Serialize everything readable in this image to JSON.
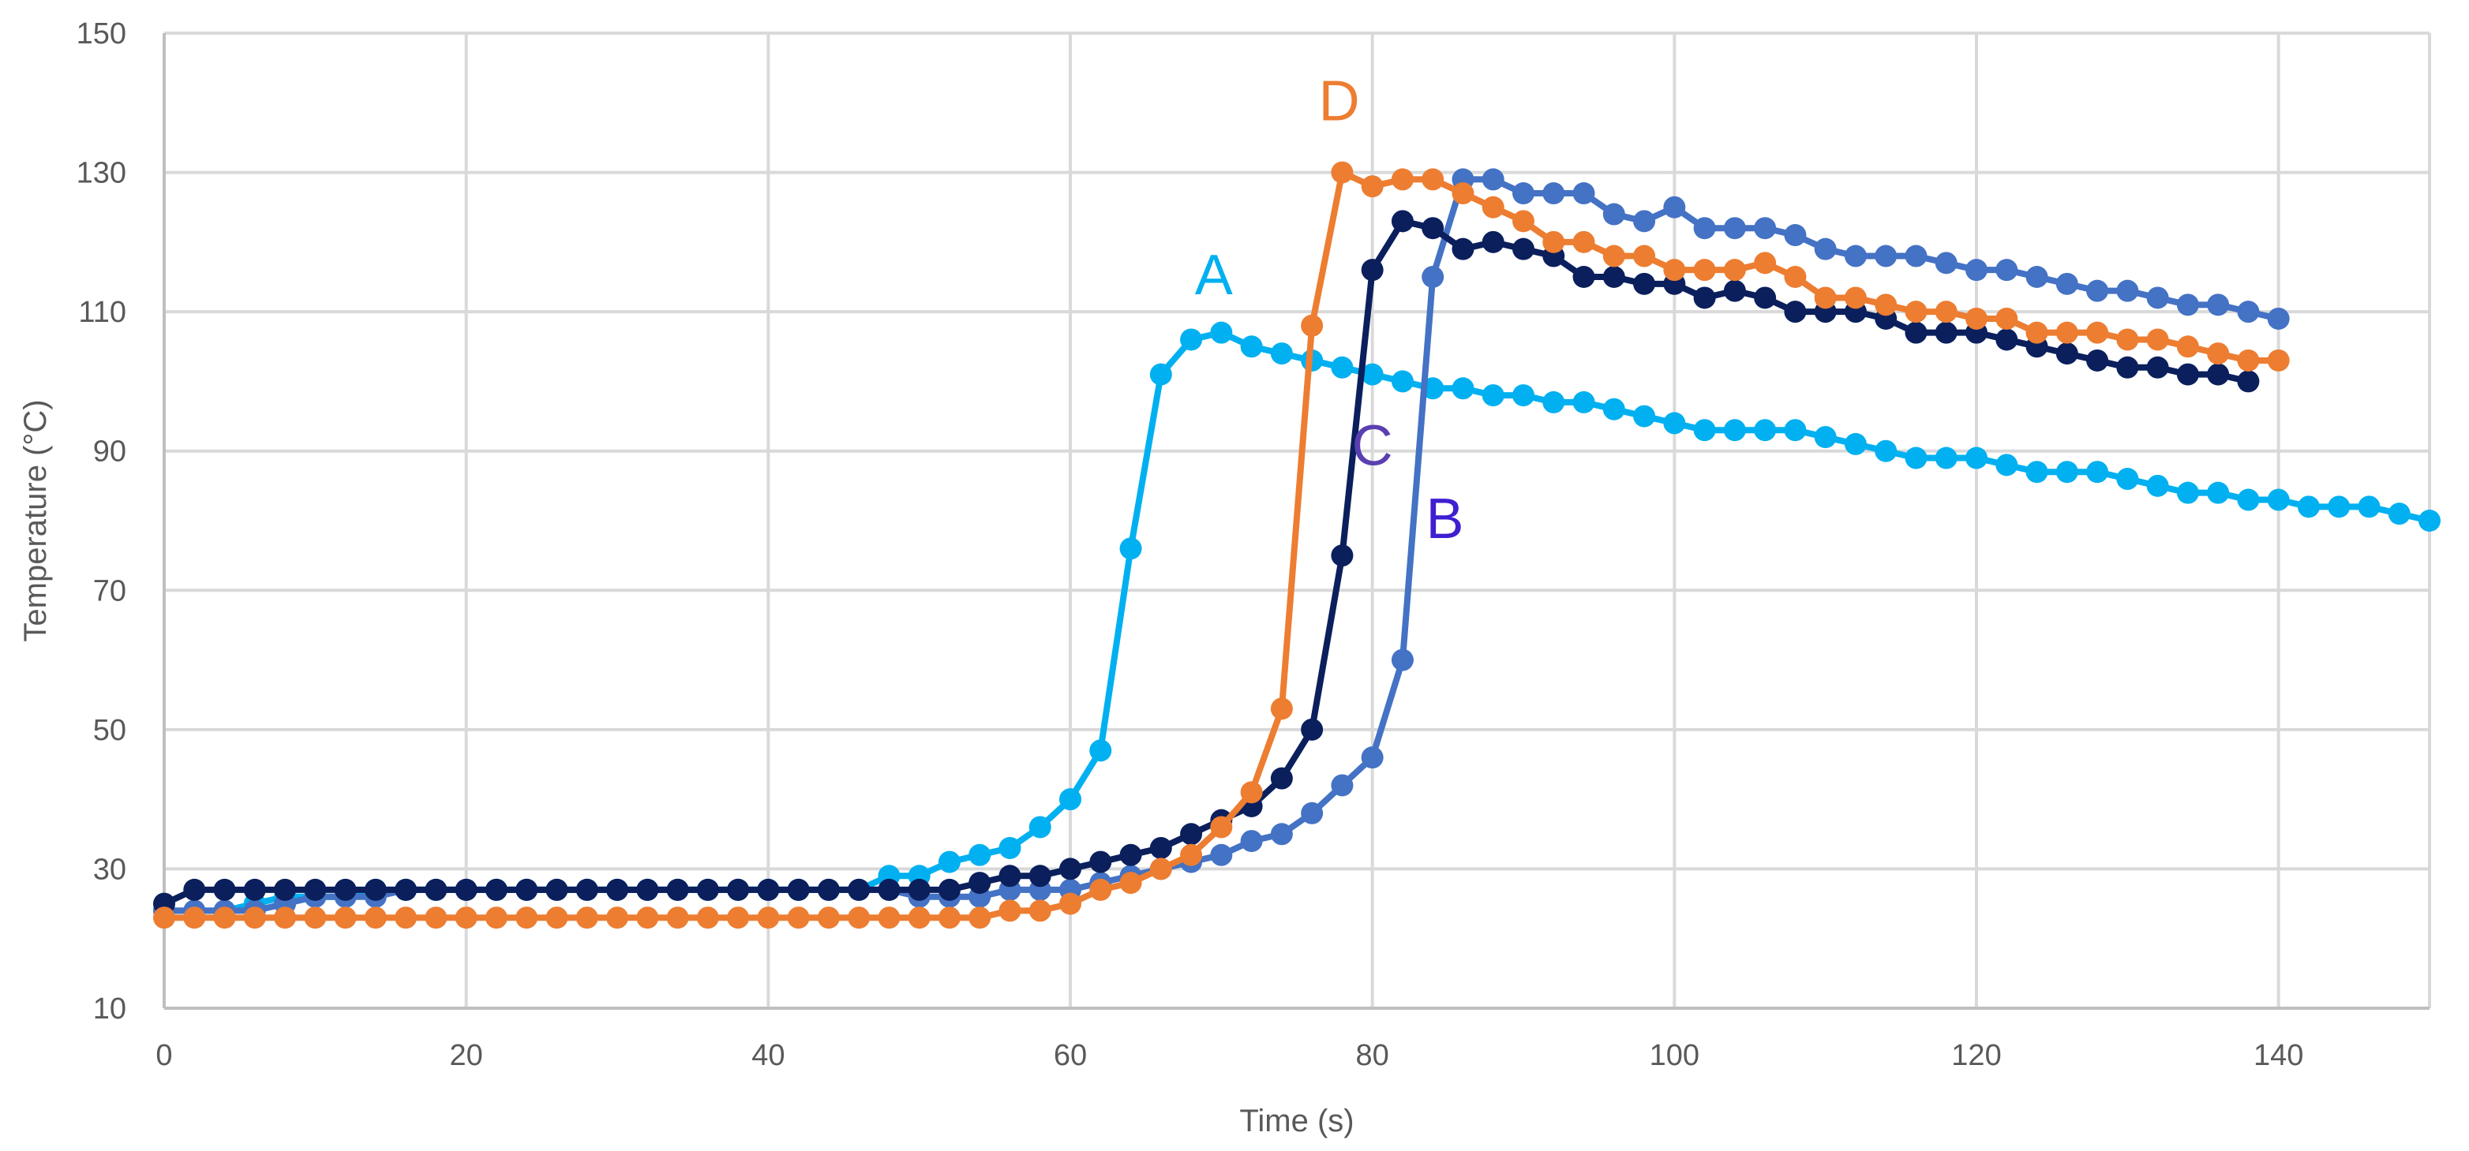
{
  "chart_data": {
    "type": "line",
    "title": "",
    "xlabel": "Time (s)",
    "ylabel": "Temperature (°C)",
    "xlim": [
      0,
      150
    ],
    "ylim": [
      10,
      150
    ],
    "x_ticks": [
      0,
      20,
      40,
      60,
      80,
      100,
      120,
      140
    ],
    "y_ticks": [
      10,
      30,
      50,
      70,
      90,
      110,
      130,
      150
    ],
    "grid": true,
    "series": [
      {
        "name": "A",
        "color": "#00B0F0",
        "label_at": [
          69.5,
          112.5
        ],
        "points": [
          [
            0,
            24
          ],
          [
            2,
            24
          ],
          [
            4,
            24
          ],
          [
            6,
            25
          ],
          [
            8,
            26
          ],
          [
            10,
            26
          ],
          [
            12,
            26
          ],
          [
            14,
            27
          ],
          [
            16,
            27
          ],
          [
            18,
            27
          ],
          [
            20,
            27
          ],
          [
            22,
            27
          ],
          [
            24,
            27
          ],
          [
            26,
            27
          ],
          [
            28,
            27
          ],
          [
            30,
            27
          ],
          [
            32,
            27
          ],
          [
            34,
            27
          ],
          [
            36,
            27
          ],
          [
            38,
            27
          ],
          [
            40,
            27
          ],
          [
            42,
            27
          ],
          [
            44,
            27
          ],
          [
            46,
            27
          ],
          [
            48,
            29
          ],
          [
            50,
            29
          ],
          [
            52,
            31
          ],
          [
            54,
            32
          ],
          [
            56,
            33
          ],
          [
            58,
            36
          ],
          [
            60,
            40
          ],
          [
            62,
            47
          ],
          [
            64,
            76
          ],
          [
            66,
            101
          ],
          [
            68,
            106
          ],
          [
            70,
            107
          ],
          [
            72,
            105
          ],
          [
            74,
            104
          ],
          [
            76,
            103
          ],
          [
            78,
            102
          ],
          [
            80,
            101
          ],
          [
            82,
            100
          ],
          [
            84,
            99
          ],
          [
            86,
            99
          ],
          [
            88,
            98
          ],
          [
            90,
            98
          ],
          [
            92,
            97
          ],
          [
            94,
            97
          ],
          [
            96,
            96
          ],
          [
            98,
            95
          ],
          [
            100,
            94
          ],
          [
            102,
            93
          ],
          [
            104,
            93
          ],
          [
            106,
            93
          ],
          [
            108,
            93
          ],
          [
            110,
            92
          ],
          [
            112,
            91
          ],
          [
            114,
            90
          ],
          [
            116,
            89
          ],
          [
            118,
            89
          ],
          [
            120,
            89
          ],
          [
            122,
            88
          ],
          [
            124,
            87
          ],
          [
            126,
            87
          ],
          [
            128,
            87
          ],
          [
            130,
            86
          ],
          [
            132,
            85
          ],
          [
            134,
            84
          ],
          [
            136,
            84
          ],
          [
            138,
            83
          ],
          [
            140,
            83
          ],
          [
            142,
            82
          ],
          [
            144,
            82
          ],
          [
            146,
            82
          ],
          [
            148,
            81
          ],
          [
            150,
            80
          ]
        ]
      },
      {
        "name": "B",
        "color": "#4472C4",
        "label_at": [
          84.8,
          77.5
        ],
        "points": [
          [
            0,
            24
          ],
          [
            2,
            24
          ],
          [
            4,
            24
          ],
          [
            6,
            24
          ],
          [
            8,
            25
          ],
          [
            10,
            26
          ],
          [
            12,
            26
          ],
          [
            14,
            26
          ],
          [
            16,
            27
          ],
          [
            18,
            27
          ],
          [
            20,
            27
          ],
          [
            22,
            27
          ],
          [
            24,
            27
          ],
          [
            26,
            27
          ],
          [
            28,
            27
          ],
          [
            30,
            27
          ],
          [
            32,
            27
          ],
          [
            34,
            27
          ],
          [
            36,
            27
          ],
          [
            38,
            27
          ],
          [
            40,
            27
          ],
          [
            42,
            27
          ],
          [
            44,
            27
          ],
          [
            46,
            27
          ],
          [
            48,
            27
          ],
          [
            50,
            26
          ],
          [
            52,
            26
          ],
          [
            54,
            26
          ],
          [
            56,
            27
          ],
          [
            58,
            27
          ],
          [
            60,
            27
          ],
          [
            62,
            28
          ],
          [
            64,
            29
          ],
          [
            66,
            30
          ],
          [
            68,
            31
          ],
          [
            70,
            32
          ],
          [
            72,
            34
          ],
          [
            74,
            35
          ],
          [
            76,
            38
          ],
          [
            78,
            42
          ],
          [
            80,
            46
          ],
          [
            82,
            60
          ],
          [
            84,
            115
          ],
          [
            86,
            129
          ],
          [
            88,
            129
          ],
          [
            90,
            127
          ],
          [
            92,
            127
          ],
          [
            94,
            127
          ],
          [
            96,
            124
          ],
          [
            98,
            123
          ],
          [
            100,
            125
          ],
          [
            102,
            122
          ],
          [
            104,
            122
          ],
          [
            106,
            122
          ],
          [
            108,
            121
          ],
          [
            110,
            119
          ],
          [
            112,
            118
          ],
          [
            114,
            118
          ],
          [
            116,
            118
          ],
          [
            118,
            117
          ],
          [
            120,
            116
          ],
          [
            122,
            116
          ],
          [
            124,
            115
          ],
          [
            126,
            114
          ],
          [
            128,
            113
          ],
          [
            130,
            113
          ],
          [
            132,
            112
          ],
          [
            134,
            111
          ],
          [
            136,
            111
          ],
          [
            138,
            110
          ],
          [
            140,
            109
          ]
        ]
      },
      {
        "name": "C",
        "color": "#0A1F5C",
        "label_at": [
          80.0,
          88.0
        ],
        "points": [
          [
            0,
            25
          ],
          [
            2,
            27
          ],
          [
            4,
            27
          ],
          [
            6,
            27
          ],
          [
            8,
            27
          ],
          [
            10,
            27
          ],
          [
            12,
            27
          ],
          [
            14,
            27
          ],
          [
            16,
            27
          ],
          [
            18,
            27
          ],
          [
            20,
            27
          ],
          [
            22,
            27
          ],
          [
            24,
            27
          ],
          [
            26,
            27
          ],
          [
            28,
            27
          ],
          [
            30,
            27
          ],
          [
            32,
            27
          ],
          [
            34,
            27
          ],
          [
            36,
            27
          ],
          [
            38,
            27
          ],
          [
            40,
            27
          ],
          [
            42,
            27
          ],
          [
            44,
            27
          ],
          [
            46,
            27
          ],
          [
            48,
            27
          ],
          [
            50,
            27
          ],
          [
            52,
            27
          ],
          [
            54,
            28
          ],
          [
            56,
            29
          ],
          [
            58,
            29
          ],
          [
            60,
            30
          ],
          [
            62,
            31
          ],
          [
            64,
            32
          ],
          [
            66,
            33
          ],
          [
            68,
            35
          ],
          [
            70,
            37
          ],
          [
            72,
            39
          ],
          [
            74,
            43
          ],
          [
            76,
            50
          ],
          [
            78,
            75
          ],
          [
            80,
            116
          ],
          [
            82,
            123
          ],
          [
            84,
            122
          ],
          [
            86,
            119
          ],
          [
            88,
            120
          ],
          [
            90,
            119
          ],
          [
            92,
            118
          ],
          [
            94,
            115
          ],
          [
            96,
            115
          ],
          [
            98,
            114
          ],
          [
            100,
            114
          ],
          [
            102,
            112
          ],
          [
            104,
            113
          ],
          [
            106,
            112
          ],
          [
            108,
            110
          ],
          [
            110,
            110
          ],
          [
            112,
            110
          ],
          [
            114,
            109
          ],
          [
            116,
            107
          ],
          [
            118,
            107
          ],
          [
            120,
            107
          ],
          [
            122,
            106
          ],
          [
            124,
            105
          ],
          [
            126,
            104
          ],
          [
            128,
            103
          ],
          [
            130,
            102
          ],
          [
            132,
            102
          ],
          [
            134,
            101
          ],
          [
            136,
            101
          ],
          [
            138,
            100
          ]
        ]
      },
      {
        "name": "D",
        "color": "#ED7D31",
        "label_at": [
          77.8,
          137.5
        ],
        "points": [
          [
            0,
            23
          ],
          [
            2,
            23
          ],
          [
            4,
            23
          ],
          [
            6,
            23
          ],
          [
            8,
            23
          ],
          [
            10,
            23
          ],
          [
            12,
            23
          ],
          [
            14,
            23
          ],
          [
            16,
            23
          ],
          [
            18,
            23
          ],
          [
            20,
            23
          ],
          [
            22,
            23
          ],
          [
            24,
            23
          ],
          [
            26,
            23
          ],
          [
            28,
            23
          ],
          [
            30,
            23
          ],
          [
            32,
            23
          ],
          [
            34,
            23
          ],
          [
            36,
            23
          ],
          [
            38,
            23
          ],
          [
            40,
            23
          ],
          [
            42,
            23
          ],
          [
            44,
            23
          ],
          [
            46,
            23
          ],
          [
            48,
            23
          ],
          [
            50,
            23
          ],
          [
            52,
            23
          ],
          [
            54,
            23
          ],
          [
            56,
            24
          ],
          [
            58,
            24
          ],
          [
            60,
            25
          ],
          [
            62,
            27
          ],
          [
            64,
            28
          ],
          [
            66,
            30
          ],
          [
            68,
            32
          ],
          [
            70,
            36
          ],
          [
            72,
            41
          ],
          [
            74,
            53
          ],
          [
            76,
            108
          ],
          [
            78,
            130
          ],
          [
            80,
            128
          ],
          [
            82,
            129
          ],
          [
            84,
            129
          ],
          [
            86,
            127
          ],
          [
            88,
            125
          ],
          [
            90,
            123
          ],
          [
            92,
            120
          ],
          [
            94,
            120
          ],
          [
            96,
            118
          ],
          [
            98,
            118
          ],
          [
            100,
            116
          ],
          [
            102,
            116
          ],
          [
            104,
            116
          ],
          [
            106,
            117
          ],
          [
            108,
            115
          ],
          [
            110,
            112
          ],
          [
            112,
            112
          ],
          [
            114,
            111
          ],
          [
            116,
            110
          ],
          [
            118,
            110
          ],
          [
            120,
            109
          ],
          [
            122,
            109
          ],
          [
            124,
            107
          ],
          [
            126,
            107
          ],
          [
            128,
            107
          ],
          [
            130,
            106
          ],
          [
            132,
            106
          ],
          [
            134,
            105
          ],
          [
            136,
            104
          ],
          [
            138,
            103
          ],
          [
            140,
            103
          ]
        ]
      }
    ],
    "series_label_colors": {
      "A": "#00B0F0",
      "B": "#3F1FD0",
      "C": "#5A3FB0",
      "D": "#ED7D31"
    }
  }
}
